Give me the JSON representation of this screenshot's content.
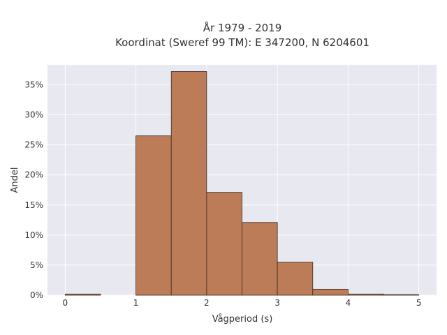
{
  "chart_data": {
    "type": "bar",
    "title": "År 1979 - 2019",
    "subtitle": "Koordinat (Sweref 99 TM): E 347200, N 6204601",
    "xlabel": "Vågperiod (s)",
    "ylabel": "Andel",
    "bin_width": 0.5,
    "bins": [
      {
        "start": 0.0,
        "end": 0.5,
        "value": 0.2
      },
      {
        "start": 0.5,
        "end": 1.0,
        "value": 0.0
      },
      {
        "start": 1.0,
        "end": 1.5,
        "value": 26.5
      },
      {
        "start": 1.5,
        "end": 2.0,
        "value": 37.2
      },
      {
        "start": 2.0,
        "end": 2.5,
        "value": 17.1
      },
      {
        "start": 2.5,
        "end": 3.0,
        "value": 12.1
      },
      {
        "start": 3.0,
        "end": 3.5,
        "value": 5.5
      },
      {
        "start": 3.5,
        "end": 4.0,
        "value": 1.0
      },
      {
        "start": 4.0,
        "end": 4.5,
        "value": 0.2
      },
      {
        "start": 4.5,
        "end": 5.0,
        "value": 0.1
      }
    ],
    "xlim": [
      -0.25,
      5.25
    ],
    "ylim": [
      0,
      38.3
    ],
    "xticks": [
      {
        "value": 0,
        "label": "0"
      },
      {
        "value": 1,
        "label": "1"
      },
      {
        "value": 2,
        "label": "2"
      },
      {
        "value": 3,
        "label": "3"
      },
      {
        "value": 4,
        "label": "4"
      },
      {
        "value": 5,
        "label": "5"
      }
    ],
    "yticks": [
      {
        "value": 0,
        "label": "0%"
      },
      {
        "value": 5,
        "label": "5%"
      },
      {
        "value": 10,
        "label": "10%"
      },
      {
        "value": 15,
        "label": "15%"
      },
      {
        "value": 20,
        "label": "20%"
      },
      {
        "value": 25,
        "label": "25%"
      },
      {
        "value": 30,
        "label": "30%"
      },
      {
        "value": 35,
        "label": "35%"
      }
    ],
    "grid": true,
    "colors": {
      "bar_fill": "#bc7c58",
      "bar_edge": "#3a2a20",
      "plot_background": "#e8e8f0",
      "grid": "#ffffff"
    }
  }
}
